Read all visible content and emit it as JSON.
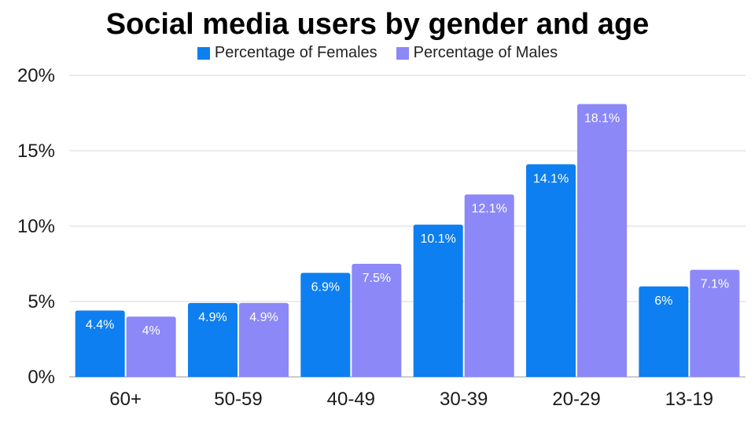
{
  "chart_data": {
    "type": "bar",
    "title": "Social media users by gender and age",
    "xlabel": "",
    "ylabel": "",
    "categories": [
      "60+",
      "50-59",
      "40-49",
      "30-39",
      "20-29",
      "13-19"
    ],
    "series": [
      {
        "name": "Percentage of Females",
        "color": "#0d7ff0",
        "values": [
          4.4,
          4.9,
          6.9,
          10.1,
          14.1,
          6
        ],
        "labels": [
          "4.4%",
          "4.9%",
          "6.9%",
          "10.1%",
          "14.1%",
          "6%"
        ]
      },
      {
        "name": "Percentage of Males",
        "color": "#8c88f7",
        "values": [
          4,
          4.9,
          7.5,
          12.1,
          18.1,
          7.1
        ],
        "labels": [
          "4%",
          "4.9%",
          "7.5%",
          "12.1%",
          "18.1%",
          "7.1%"
        ]
      }
    ],
    "ylim": [
      0,
      20
    ],
    "yticks": [
      0,
      5,
      10,
      15,
      20
    ],
    "ytick_labels": [
      "0%",
      "5%",
      "10%",
      "15%",
      "20%"
    ],
    "grid": true,
    "legend_position": "top-center"
  }
}
